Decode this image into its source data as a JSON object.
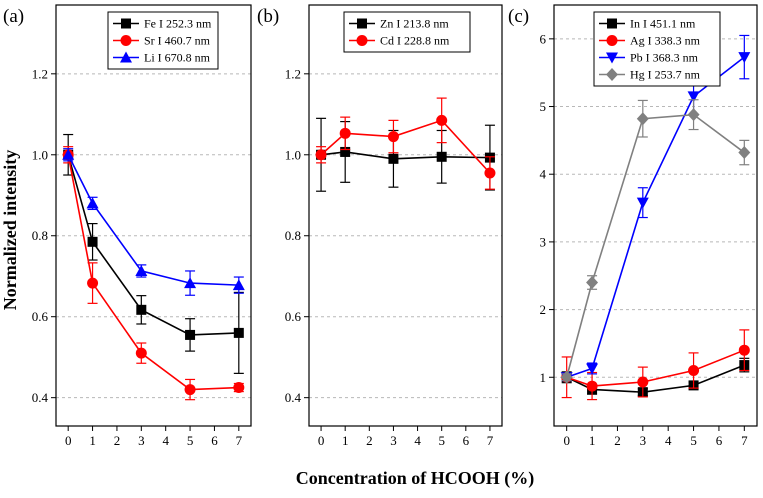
{
  "figure": {
    "ylabel": "Normalized intensity",
    "xlabel": "Concentration of HCOOH (%)"
  },
  "chart_data": [
    {
      "type": "line",
      "panel_label": "(a)",
      "title": "",
      "xlabel": "Concentration of HCOOH (%)",
      "ylabel": "Normalized intensity",
      "x_ticks": [
        "0",
        "1",
        "2",
        "3",
        "4",
        "5",
        "6",
        "7"
      ],
      "y_ticks": [
        "0.4",
        "0.6",
        "0.8",
        "1.0",
        "1.2"
      ],
      "xlim": [
        -0.5,
        7.5
      ],
      "ylim": [
        0.33,
        1.37
      ],
      "grid": "horizontal dashed",
      "legend_position": "top-center",
      "series": [
        {
          "name": "Fe I 252.3 nm",
          "color": "#000000",
          "marker": "square",
          "x": [
            0,
            1,
            3,
            5,
            7
          ],
          "y": [
            1.0,
            0.785,
            0.617,
            0.555,
            0.56
          ],
          "err": [
            0.05,
            0.045,
            0.035,
            0.04,
            0.1
          ]
        },
        {
          "name": "Sr I 460.7 nm",
          "color": "#ff0000",
          "marker": "circle",
          "x": [
            0,
            1,
            3,
            5,
            7
          ],
          "y": [
            1.0,
            0.683,
            0.51,
            0.42,
            0.425
          ],
          "err": [
            0.02,
            0.05,
            0.025,
            0.025,
            0.01
          ]
        },
        {
          "name": "Li I 670.8 nm",
          "color": "#0000ff",
          "marker": "triangle-up",
          "x": [
            0,
            1,
            3,
            5,
            7
          ],
          "y": [
            1.0,
            0.88,
            0.713,
            0.683,
            0.678
          ],
          "err": [
            0.015,
            0.015,
            0.015,
            0.03,
            0.02
          ]
        }
      ]
    },
    {
      "type": "line",
      "panel_label": "(b)",
      "title": "",
      "xlabel": "Concentration of HCOOH (%)",
      "ylabel": "Normalized intensity",
      "x_ticks": [
        "0",
        "1",
        "2",
        "3",
        "4",
        "5",
        "6",
        "7"
      ],
      "y_ticks": [
        "0.4",
        "0.6",
        "0.8",
        "1.0",
        "1.2"
      ],
      "xlim": [
        -0.5,
        7.5
      ],
      "ylim": [
        0.33,
        1.37
      ],
      "grid": "horizontal dashed",
      "legend_position": "top-center",
      "series": [
        {
          "name": "Zn I 213.8 nm",
          "color": "#000000",
          "marker": "square",
          "x": [
            0,
            1,
            3,
            5,
            7
          ],
          "y": [
            1.0,
            1.007,
            0.99,
            0.995,
            0.993
          ],
          "err": [
            0.09,
            0.075,
            0.07,
            0.065,
            0.08
          ]
        },
        {
          "name": "Cd I 228.8 nm",
          "color": "#ff0000",
          "marker": "circle",
          "x": [
            0,
            1,
            3,
            5,
            7
          ],
          "y": [
            1.0,
            1.053,
            1.045,
            1.085,
            0.955
          ],
          "err": [
            0.02,
            0.04,
            0.04,
            0.055,
            0.04
          ]
        }
      ]
    },
    {
      "type": "line",
      "panel_label": "(c)",
      "title": "",
      "xlabel": "Concentration of HCOOH (%)",
      "ylabel": "Normalized intensity",
      "x_ticks": [
        "0",
        "1",
        "2",
        "3",
        "4",
        "5",
        "6",
        "7"
      ],
      "y_ticks": [
        "1",
        "2",
        "3",
        "4",
        "5",
        "6"
      ],
      "xlim": [
        -0.5,
        7.5
      ],
      "ylim": [
        0.28,
        6.5
      ],
      "grid": "horizontal dashed",
      "legend_position": "top-center",
      "series": [
        {
          "name": "In I 451.1 nm",
          "color": "#000000",
          "marker": "square",
          "x": [
            0,
            1,
            3,
            5,
            7
          ],
          "y": [
            1.0,
            0.82,
            0.78,
            0.88,
            1.18
          ],
          "err": [
            0.08,
            0.07,
            0.05,
            0.05,
            0.1
          ]
        },
        {
          "name": "Ag I 338.3 nm",
          "color": "#ff0000",
          "marker": "circle",
          "x": [
            0,
            1,
            3,
            5,
            7
          ],
          "y": [
            1.0,
            0.87,
            0.93,
            1.1,
            1.4
          ],
          "err": [
            0.3,
            0.2,
            0.22,
            0.26,
            0.3
          ]
        },
        {
          "name": "Pb I 368.3 nm",
          "color": "#0000ff",
          "marker": "triangle-down",
          "x": [
            0,
            1,
            3,
            5,
            7
          ],
          "y": [
            1.0,
            1.13,
            3.58,
            5.15,
            5.73
          ],
          "err": [
            0.05,
            0.08,
            0.22,
            0.27,
            0.32
          ]
        },
        {
          "name": "Hg I 253.7 nm",
          "color": "#808080",
          "marker": "diamond",
          "x": [
            0,
            1,
            3,
            5,
            7
          ],
          "y": [
            1.0,
            2.4,
            4.82,
            4.88,
            4.32
          ],
          "err": [
            0.05,
            0.1,
            0.27,
            0.22,
            0.18
          ]
        }
      ]
    }
  ]
}
